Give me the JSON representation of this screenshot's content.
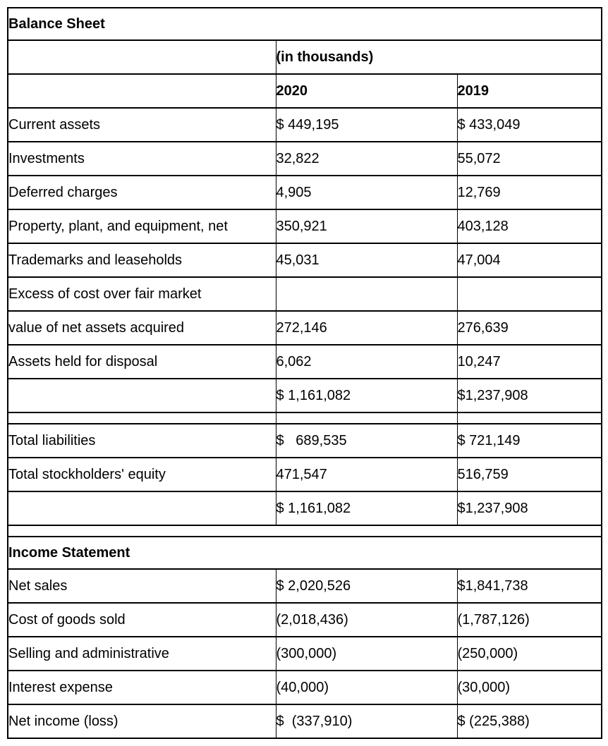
{
  "colors": {
    "background": "#ffffff",
    "text": "#000000",
    "border": "#000000"
  },
  "table": {
    "columns": {
      "label": "",
      "year_1": "2020",
      "year_2": "2019"
    },
    "rows": [
      {
        "type": "section",
        "label": "Balance Sheet"
      },
      {
        "type": "subheader",
        "label": "",
        "units": "(in thousands)"
      },
      {
        "type": "colheader",
        "label": "",
        "v2020": "2020",
        "v2019": "2019"
      },
      {
        "type": "data",
        "label": "Current assets",
        "v2020": "$ 449,195",
        "v2019": "$ 433,049"
      },
      {
        "type": "data",
        "label": "Investments",
        "v2020": "32,822",
        "v2019": "55,072"
      },
      {
        "type": "data",
        "label": "Deferred charges",
        "v2020": "4,905",
        "v2019": "12,769"
      },
      {
        "type": "data",
        "label": "Property, plant, and equipment, net",
        "v2020": "350,921",
        "v2019": "403,128"
      },
      {
        "type": "data",
        "label": "Trademarks and leaseholds",
        "v2020": "45,031",
        "v2019": "47,004"
      },
      {
        "type": "data",
        "label": "Excess of cost over fair market",
        "v2020": "",
        "v2019": ""
      },
      {
        "type": "data",
        "label": "value of net assets acquired",
        "label_indent": true,
        "v2020": "272,146",
        "v2019": "276,639"
      },
      {
        "type": "data",
        "label": "Assets held for disposal",
        "value_indent": true,
        "v2020": "6,062",
        "v2019": "10,247"
      },
      {
        "type": "data",
        "label": "",
        "v2020": "$ 1,161,082",
        "v2019": "$1,237,908"
      },
      {
        "type": "spacer-cells",
        "label": "",
        "v2020": "",
        "v2019": ""
      },
      {
        "type": "data",
        "label": "Total liabilities",
        "v2020": "$   689,535",
        "v2019": "$ 721,149"
      },
      {
        "type": "data",
        "label": "Total stockholders' equity",
        "value_indent": true,
        "v2020": "471,547",
        "v2019": "516,759"
      },
      {
        "type": "data",
        "label": "",
        "v2020": "$ 1,161,082",
        "v2019": "$1,237,908"
      },
      {
        "type": "spacer-full",
        "label": ""
      },
      {
        "type": "section",
        "label": "Income Statement"
      },
      {
        "type": "data",
        "label": "Net sales",
        "v2020": "$ 2,020,526",
        "v2019": "$1,841,738"
      },
      {
        "type": "data",
        "label": "Cost of goods sold",
        "v2020": "(2,018,436)",
        "v2019": "(1,787,126)"
      },
      {
        "type": "data",
        "label": "Selling and administrative",
        "v2020": "(300,000)",
        "v2019": "(250,000)"
      },
      {
        "type": "data",
        "label": "Interest expense",
        "value_indent": true,
        "v2020": "(40,000)",
        "v2019": "(30,000)"
      },
      {
        "type": "data",
        "label": "Net income (loss)",
        "v2020": "$  (337,910)",
        "v2019": "$ (225,388)"
      }
    ]
  }
}
